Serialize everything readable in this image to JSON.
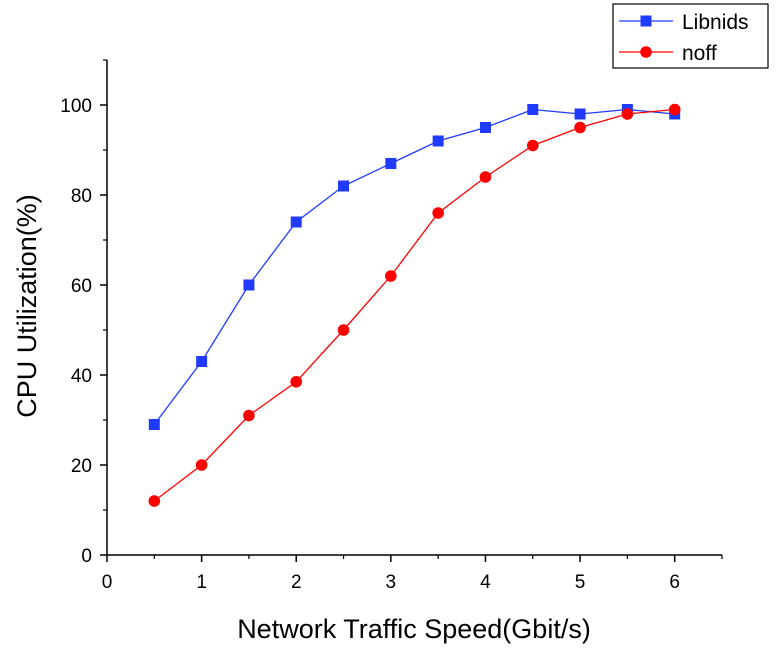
{
  "chart_data": {
    "type": "line",
    "title": "",
    "xlabel": "Network Traffic Speed(Gbit/s)",
    "ylabel": "CPU Utilization(%)",
    "xlim": [
      0,
      6.5
    ],
    "ylim": [
      0,
      110
    ],
    "x_ticks": [
      "0",
      "1",
      "2",
      "3",
      "4",
      "5",
      "6"
    ],
    "y_ticks": [
      "0",
      "20",
      "40",
      "60",
      "80",
      "100"
    ],
    "grid": false,
    "legend_position": "top-right",
    "x": [
      0.5,
      1.0,
      1.5,
      2.0,
      2.5,
      3.0,
      3.5,
      4.0,
      4.5,
      5.0,
      5.5,
      6.0
    ],
    "series": [
      {
        "name": "Libnids",
        "color": "#1f3bff",
        "marker": "square",
        "values": [
          29,
          43,
          60,
          74,
          82,
          87,
          92,
          95,
          99,
          98,
          99,
          98
        ]
      },
      {
        "name": "noff",
        "color": "#ff0000",
        "marker": "circle",
        "values": [
          12,
          20,
          31,
          38.5,
          50,
          62,
          76,
          84,
          91,
          95,
          98,
          99
        ]
      }
    ]
  }
}
